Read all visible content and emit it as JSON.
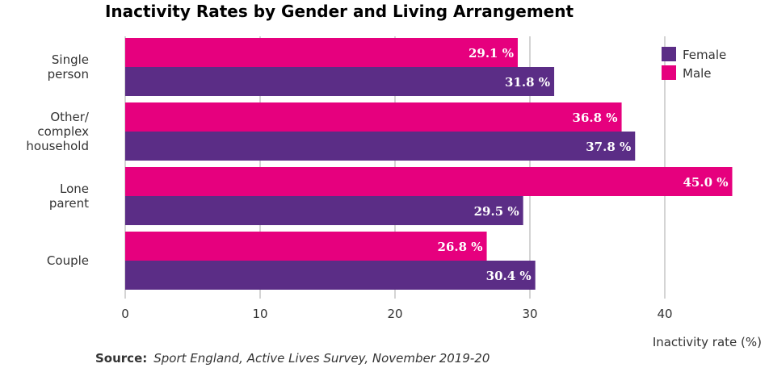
{
  "chart_data": {
    "type": "bar",
    "orientation": "horizontal",
    "title": "Inactivity Rates by Gender and Living Arrangement",
    "xlabel": "Inactivity rate (%)",
    "ylabel": "",
    "xlim": [
      0,
      45
    ],
    "xticks": [
      0,
      10,
      20,
      30,
      40
    ],
    "grid": true,
    "legend_position": "top-right",
    "categories": [
      [
        "Single",
        "person"
      ],
      [
        "Other/",
        "complex",
        "household"
      ],
      [
        "Lone",
        "parent"
      ],
      [
        "Couple"
      ]
    ],
    "series": [
      {
        "name": "Male",
        "color": "#E6007E",
        "values": [
          29.1,
          36.8,
          45.0,
          26.8
        ],
        "labels": [
          "29.1 %",
          "36.8 %",
          "45.0 %",
          "26.8 %"
        ]
      },
      {
        "name": "Female",
        "color": "#5B2D86",
        "values": [
          31.8,
          37.8,
          29.5,
          30.4
        ],
        "labels": [
          "31.8 %",
          "37.8 %",
          "29.5 %",
          "30.4 %"
        ]
      }
    ],
    "legend_order": [
      "Female",
      "Male"
    ]
  },
  "source": {
    "label": "Source:",
    "text": "Sport England, Active Lives Survey, November 2019-20"
  },
  "colors": {
    "title": "#5B2D86",
    "grid": "#aaaaaa"
  }
}
